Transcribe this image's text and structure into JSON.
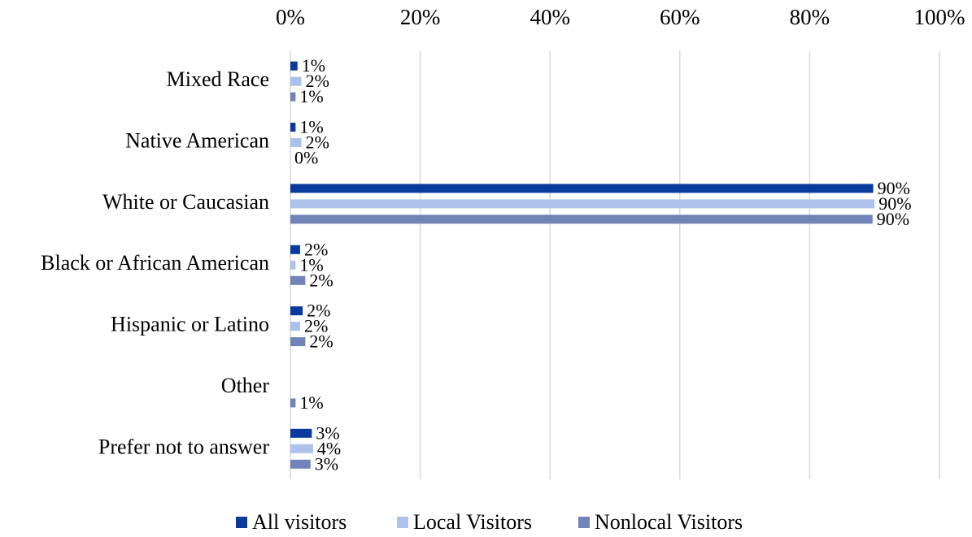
{
  "chart_data": {
    "type": "hbar",
    "categories": [
      "Mixed Race",
      "Native American",
      "White or Caucasian",
      "Black or African American",
      "Hispanic or Latino",
      "Other",
      "Prefer not to answer"
    ],
    "series": [
      {
        "name": "All visitors",
        "color": "#0a3a9e",
        "values": [
          1.1,
          0.8,
          89.8,
          1.5,
          1.9,
          null,
          3.3
        ],
        "value_labels": [
          "1%",
          "1%",
          "90%",
          "2%",
          "2%",
          null,
          "3%"
        ]
      },
      {
        "name": "Local Visitors",
        "color": "#adc2ea",
        "values": [
          1.7,
          1.7,
          90.0,
          0.8,
          1.5,
          null,
          3.5
        ],
        "value_labels": [
          "2%",
          "2%",
          "90%",
          "1%",
          "2%",
          null,
          "4%"
        ]
      },
      {
        "name": "Nonlocal Visitors",
        "color": "#7084b8",
        "values": [
          0.8,
          0,
          89.7,
          2.3,
          2.3,
          0.8,
          3.1
        ],
        "value_labels": [
          "1%",
          "0%",
          "90%",
          "2%",
          "2%",
          "1%",
          "3%"
        ]
      }
    ],
    "xlim": [
      0,
      100
    ],
    "xticks": [
      {
        "value": 0,
        "label": "0%"
      },
      {
        "value": 20,
        "label": "20%"
      },
      {
        "value": 40,
        "label": "40%"
      },
      {
        "value": 60,
        "label": "60%"
      },
      {
        "value": 80,
        "label": "80%"
      },
      {
        "value": 100,
        "label": "100%"
      }
    ],
    "grid": true,
    "legend": "bottom"
  }
}
